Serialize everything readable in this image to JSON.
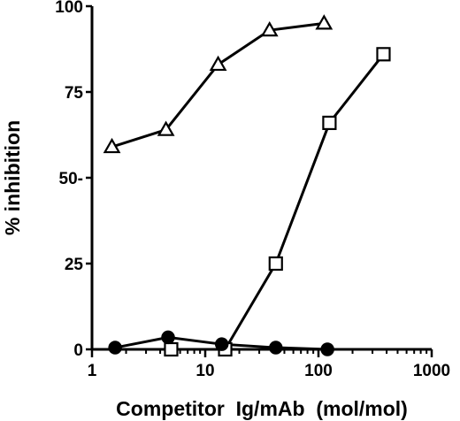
{
  "chart_data": {
    "type": "line",
    "xlabel": "Competitor  Ig/mAb  (mol/mol)",
    "ylabel": "% inhibition",
    "x_scale": "log",
    "xlim": [
      1,
      1000
    ],
    "ylim": [
      0,
      100
    ],
    "x_ticks": [
      {
        "value": 1,
        "label": "1"
      },
      {
        "value": 10,
        "label": "10"
      },
      {
        "value": 100,
        "label": "100"
      },
      {
        "value": 1000,
        "label": "1000"
      }
    ],
    "y_ticks": [
      {
        "value": 0,
        "label": "0"
      },
      {
        "value": 25,
        "label": "25"
      },
      {
        "value": 50,
        "label": "50-"
      },
      {
        "value": 75,
        "label": "75"
      },
      {
        "value": 100,
        "label": "100"
      }
    ],
    "grid": false,
    "series": [
      {
        "marker": "open-triangle",
        "x": [
          1.5,
          4.5,
          13,
          37,
          112
        ],
        "y": [
          59,
          64,
          83,
          93,
          95
        ]
      },
      {
        "marker": "open-square",
        "x": [
          5,
          15,
          42,
          125,
          375
        ],
        "y": [
          0,
          0,
          25,
          66,
          86
        ]
      },
      {
        "marker": "filled-circle",
        "x": [
          1.6,
          4.7,
          14,
          42,
          120
        ],
        "y": [
          0.5,
          3.5,
          1.5,
          0.5,
          0
        ]
      }
    ]
  }
}
